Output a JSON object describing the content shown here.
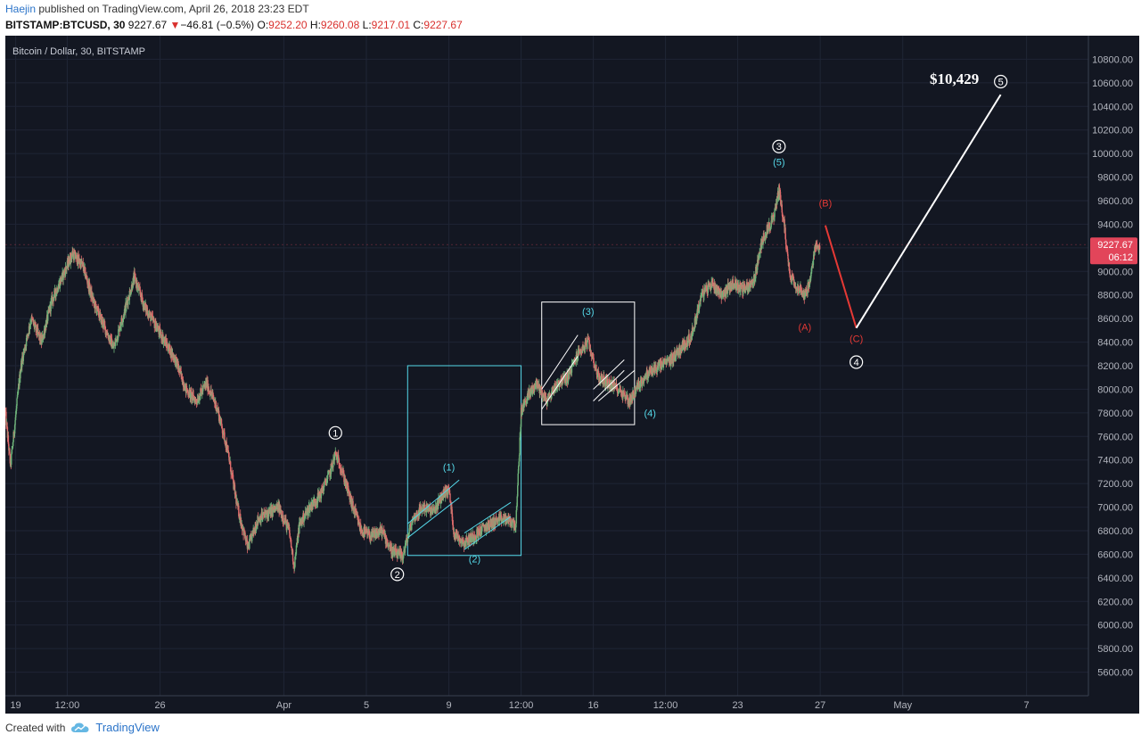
{
  "header": {
    "author": "Haejin",
    "published_text": "published on TradingView.com, April 26, 2018 23:23 EDT",
    "symbol": "BITSTAMP:BTCUSD, 30",
    "last": "9227.67",
    "change_arrow": "▼",
    "change": "−46.81 (−0.5%)",
    "open_label": "O:",
    "open": "9252.20",
    "high_label": "H:",
    "high": "9260.08",
    "low_label": "L:",
    "low": "9217.01",
    "close_label": "C:",
    "close": "9227.67"
  },
  "footer": {
    "created_with": "Created with",
    "brand": "TradingView",
    "logo_icon": "tradingview-cloud-icon"
  },
  "chart_data": {
    "type": "candlestick",
    "title": "Bitcoin / Dollar, 30, BITSTAMP",
    "colors": {
      "background": "#131722",
      "up": "#6fb37a",
      "down": "#e06c6c",
      "cyan": "#55d8e8",
      "white": "#ffffff",
      "red": "#e53935",
      "price_tag": "#e2455a"
    },
    "y_axis": {
      "ylim": [
        5400,
        11000
      ],
      "ticks": [
        5600,
        5800,
        6000,
        6200,
        6400,
        6600,
        6800,
        7000,
        7200,
        7400,
        7600,
        7800,
        8000,
        8200,
        8400,
        8600,
        8800,
        9000,
        9200,
        9400,
        9600,
        9800,
        10000,
        10200,
        10400,
        10600,
        10800
      ]
    },
    "x_axis": {
      "xlim": [
        "2018-03-18T12:00",
        "2018-05-10T00:00"
      ],
      "ticks": [
        {
          "label": "19",
          "t": "2018-03-19T00:00"
        },
        {
          "label": "12:00",
          "t": "2018-03-21T12:00"
        },
        {
          "label": "26",
          "t": "2018-03-26T00:00"
        },
        {
          "label": "Apr",
          "t": "2018-04-01T00:00"
        },
        {
          "label": "5",
          "t": "2018-04-05T00:00"
        },
        {
          "label": "9",
          "t": "2018-04-09T00:00"
        },
        {
          "label": "12:00",
          "t": "2018-04-12T12:00"
        },
        {
          "label": "16",
          "t": "2018-04-16T00:00"
        },
        {
          "label": "12:00",
          "t": "2018-04-19T12:00"
        },
        {
          "label": "23",
          "t": "2018-04-23T00:00"
        },
        {
          "label": "27",
          "t": "2018-04-27T00:00"
        },
        {
          "label": "May",
          "t": "2018-05-01T00:00"
        },
        {
          "label": "7",
          "t": "2018-05-07T00:00"
        }
      ]
    },
    "price_path": [
      [
        "2018-03-18T12:00",
        7800
      ],
      [
        "2018-03-18T18:00",
        7350
      ],
      [
        "2018-03-19T06:00",
        8200
      ],
      [
        "2018-03-19T18:00",
        8600
      ],
      [
        "2018-03-20T06:00",
        8400
      ],
      [
        "2018-03-20T18:00",
        8750
      ],
      [
        "2018-03-21T12:00",
        9050
      ],
      [
        "2018-03-21T18:00",
        9150
      ],
      [
        "2018-03-22T06:00",
        9050
      ],
      [
        "2018-03-22T18:00",
        8750
      ],
      [
        "2018-03-23T06:00",
        8550
      ],
      [
        "2018-03-23T18:00",
        8350
      ],
      [
        "2018-03-24T06:00",
        8650
      ],
      [
        "2018-03-24T18:00",
        8950
      ],
      [
        "2018-03-25T06:00",
        8700
      ],
      [
        "2018-03-25T18:00",
        8550
      ],
      [
        "2018-03-26T06:00",
        8400
      ],
      [
        "2018-03-26T18:00",
        8250
      ],
      [
        "2018-03-27T06:00",
        8000
      ],
      [
        "2018-03-27T18:00",
        7900
      ],
      [
        "2018-03-28T06:00",
        8050
      ],
      [
        "2018-03-28T18:00",
        7850
      ],
      [
        "2018-03-29T06:00",
        7500
      ],
      [
        "2018-03-29T18:00",
        7000
      ],
      [
        "2018-03-30T06:00",
        6650
      ],
      [
        "2018-03-30T18:00",
        6900
      ],
      [
        "2018-03-31T06:00",
        6950
      ],
      [
        "2018-03-31T18:00",
        7000
      ],
      [
        "2018-04-01T06:00",
        6800
      ],
      [
        "2018-04-01T12:00",
        6500
      ],
      [
        "2018-04-01T18:00",
        6850
      ],
      [
        "2018-04-02T06:00",
        7000
      ],
      [
        "2018-04-02T18:00",
        7100
      ],
      [
        "2018-04-03T06:00",
        7300
      ],
      [
        "2018-04-03T12:00",
        7450
      ],
      [
        "2018-04-03T18:00",
        7350
      ],
      [
        "2018-04-04T06:00",
        7050
      ],
      [
        "2018-04-04T18:00",
        6800
      ],
      [
        "2018-04-05T06:00",
        6750
      ],
      [
        "2018-04-05T18:00",
        6800
      ],
      [
        "2018-04-06T06:00",
        6620
      ],
      [
        "2018-04-06T18:00",
        6580
      ],
      [
        "2018-04-07T06:00",
        6900
      ],
      [
        "2018-04-07T18:00",
        7000
      ],
      [
        "2018-04-08T06:00",
        6960
      ],
      [
        "2018-04-08T18:00",
        7120
      ],
      [
        "2018-04-09T00:00",
        7150
      ],
      [
        "2018-04-09T06:00",
        6780
      ],
      [
        "2018-04-09T18:00",
        6700
      ],
      [
        "2018-04-10T06:00",
        6760
      ],
      [
        "2018-04-10T18:00",
        6830
      ],
      [
        "2018-04-11T06:00",
        6880
      ],
      [
        "2018-04-11T18:00",
        6900
      ],
      [
        "2018-04-12T06:00",
        6850
      ],
      [
        "2018-04-12T12:00",
        7800
      ],
      [
        "2018-04-12T18:00",
        7920
      ],
      [
        "2018-04-13T06:00",
        8050
      ],
      [
        "2018-04-13T18:00",
        7900
      ],
      [
        "2018-04-14T06:00",
        8050
      ],
      [
        "2018-04-14T18:00",
        8100
      ],
      [
        "2018-04-15T06:00",
        8300
      ],
      [
        "2018-04-15T18:00",
        8400
      ],
      [
        "2018-04-16T06:00",
        8100
      ],
      [
        "2018-04-16T18:00",
        8050
      ],
      [
        "2018-04-17T06:00",
        8000
      ],
      [
        "2018-04-17T18:00",
        7900
      ],
      [
        "2018-04-18T06:00",
        8050
      ],
      [
        "2018-04-18T18:00",
        8150
      ],
      [
        "2018-04-19T06:00",
        8200
      ],
      [
        "2018-04-19T18:00",
        8250
      ],
      [
        "2018-04-20T06:00",
        8350
      ],
      [
        "2018-04-20T18:00",
        8450
      ],
      [
        "2018-04-21T06:00",
        8800
      ],
      [
        "2018-04-21T18:00",
        8900
      ],
      [
        "2018-04-22T06:00",
        8800
      ],
      [
        "2018-04-22T18:00",
        8900
      ],
      [
        "2018-04-23T06:00",
        8850
      ],
      [
        "2018-04-23T18:00",
        8900
      ],
      [
        "2018-04-24T06:00",
        9300
      ],
      [
        "2018-04-24T18:00",
        9450
      ],
      [
        "2018-04-25T00:00",
        9700
      ],
      [
        "2018-04-25T06:00",
        9400
      ],
      [
        "2018-04-25T12:00",
        9000
      ],
      [
        "2018-04-25T18:00",
        8900
      ],
      [
        "2018-04-26T06:00",
        8800
      ],
      [
        "2018-04-26T12:00",
        8900
      ],
      [
        "2018-04-26T18:00",
        9200
      ],
      [
        "2018-04-26T23:30",
        9227.67
      ]
    ],
    "price_tag": {
      "price": "9227.67",
      "countdown": "06:12"
    },
    "annotations": [
      {
        "label": "1",
        "style": "white-circle",
        "t": "2018-04-03T12:00",
        "y": 7630
      },
      {
        "label": "2",
        "style": "white-circle",
        "t": "2018-04-06T12:00",
        "y": 6430
      },
      {
        "label": "3",
        "style": "white-circle",
        "t": "2018-04-25T00:00",
        "y": 10060
      },
      {
        "label": "4",
        "style": "white-circle",
        "t": "2018-04-28T18:00",
        "y": 8230
      },
      {
        "label": "5",
        "style": "white-circle",
        "t": "2018-05-05T18:00",
        "y": 10610
      },
      {
        "label": "(1)",
        "style": "cyan",
        "t": "2018-04-09T00:00",
        "y": 7310
      },
      {
        "label": "(2)",
        "style": "cyan",
        "t": "2018-04-10T06:00",
        "y": 6530
      },
      {
        "label": "(3)",
        "style": "cyan",
        "t": "2018-04-15T18:00",
        "y": 8630
      },
      {
        "label": "(4)",
        "style": "cyan",
        "t": "2018-04-18T18:00",
        "y": 7770
      },
      {
        "label": "(5)",
        "style": "cyan",
        "t": "2018-04-25T00:00",
        "y": 9900
      },
      {
        "label": "(A)",
        "style": "red",
        "t": "2018-04-26T06:00",
        "y": 8500
      },
      {
        "label": "(B)",
        "style": "red",
        "t": "2018-04-27T06:00",
        "y": 9550
      },
      {
        "label": "(C)",
        "style": "red",
        "t": "2018-04-28T18:00",
        "y": 8400
      },
      {
        "label": "$10,429",
        "style": "white-bold",
        "t": "2018-05-03T12:00",
        "y": 10590
      }
    ],
    "boxes": [
      {
        "style": "cyan",
        "t0": "2018-04-07T00:00",
        "t1": "2018-04-12T12:00",
        "y0": 6590,
        "y1": 8200
      },
      {
        "style": "white",
        "t0": "2018-04-13T12:00",
        "t1": "2018-04-18T00:00",
        "y0": 7700,
        "y1": 8740
      }
    ],
    "channels": [
      {
        "style": "cyan",
        "t0": "2018-04-07T00:00",
        "t1": "2018-04-09T12:00",
        "y0": 6860,
        "y1": 7230
      },
      {
        "style": "cyan",
        "t0": "2018-04-07T00:00",
        "t1": "2018-04-09T12:00",
        "y0": 6740,
        "y1": 7080
      },
      {
        "style": "cyan",
        "t0": "2018-04-09T18:00",
        "t1": "2018-04-12T00:00",
        "y0": 6780,
        "y1": 7040
      },
      {
        "style": "cyan",
        "t0": "2018-04-09T18:00",
        "t1": "2018-04-12T00:00",
        "y0": 6640,
        "y1": 6920
      },
      {
        "style": "white",
        "t0": "2018-04-13T12:00",
        "t1": "2018-04-15T06:00",
        "y0": 8000,
        "y1": 8460
      },
      {
        "style": "white",
        "t0": "2018-04-13T12:00",
        "t1": "2018-04-15T06:00",
        "y0": 7830,
        "y1": 8280
      },
      {
        "style": "white",
        "t0": "2018-04-16T00:00",
        "t1": "2018-04-17T12:00",
        "y0": 8000,
        "y1": 8250
      },
      {
        "style": "white",
        "t0": "2018-04-16T00:00",
        "t1": "2018-04-17T12:00",
        "y0": 7900,
        "y1": 8160
      },
      {
        "style": "white",
        "t0": "2018-04-16T06:00",
        "t1": "2018-04-18T00:00",
        "y0": 7900,
        "y1": 8160
      }
    ],
    "projections": [
      {
        "style": "red",
        "points": [
          [
            "2018-04-27T06:00",
            9390
          ],
          [
            "2018-04-28T18:00",
            8520
          ]
        ]
      },
      {
        "style": "white",
        "points": [
          [
            "2018-04-28T18:00",
            8520
          ],
          [
            "2018-05-05T18:00",
            10500
          ]
        ]
      }
    ]
  }
}
